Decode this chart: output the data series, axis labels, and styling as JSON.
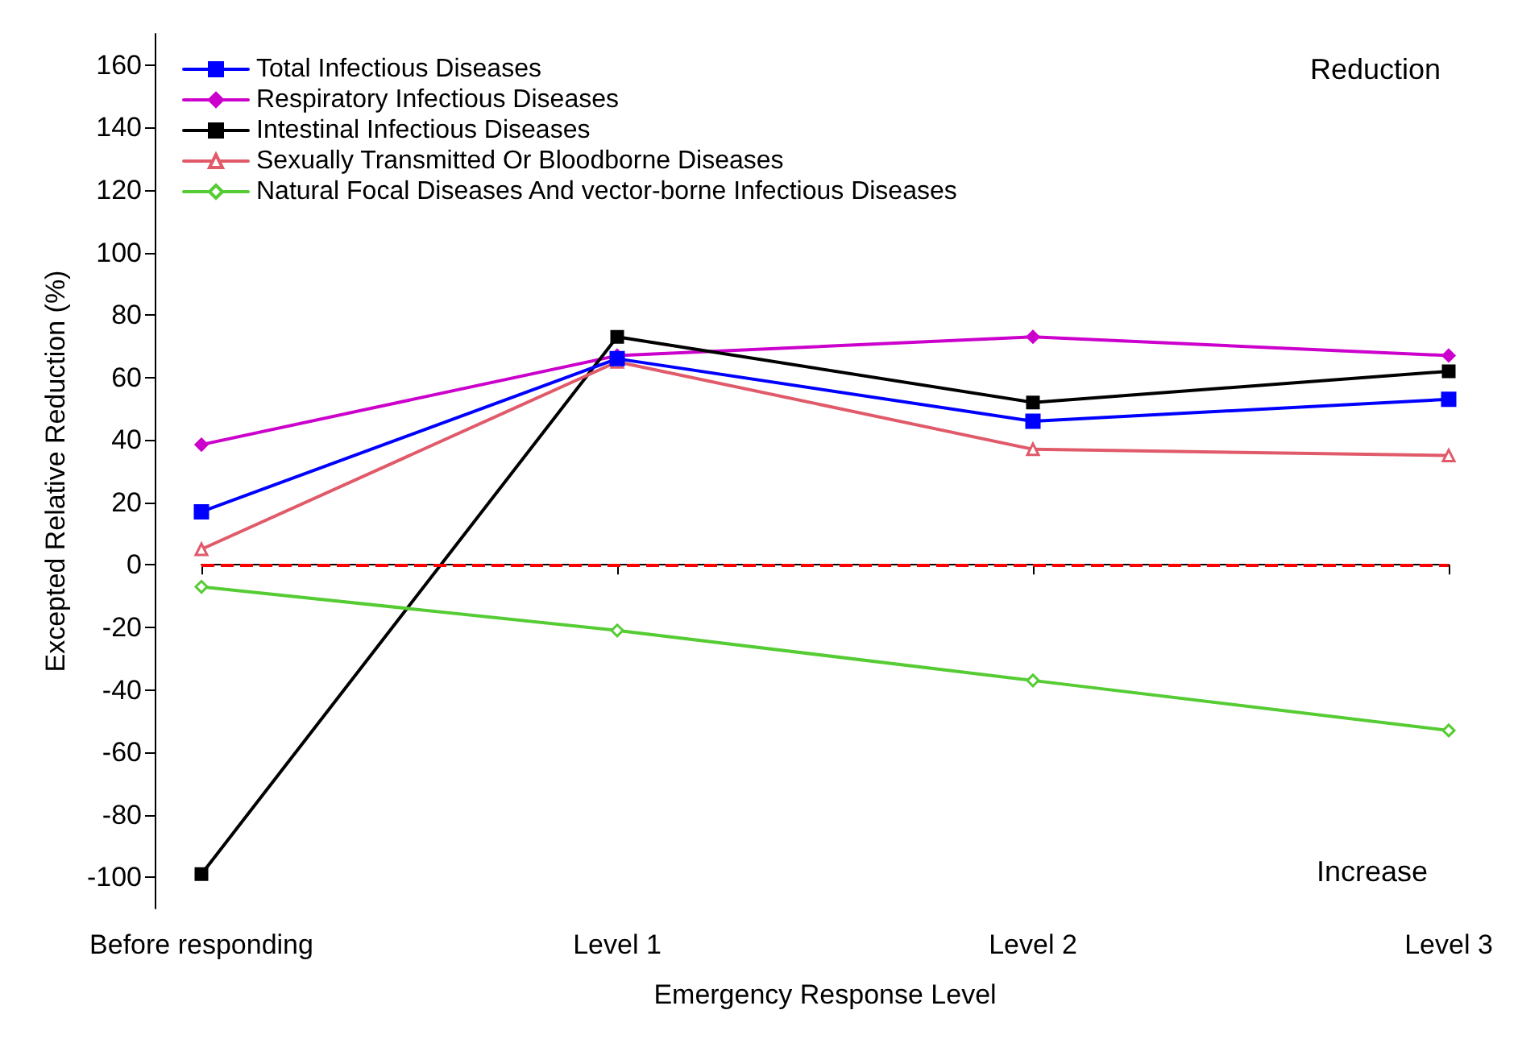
{
  "chart_data": {
    "type": "line",
    "xlabel": "Emergency Response Level",
    "ylabel": "Excepted Relative Reduction (%)",
    "categories": [
      "Before responding",
      "Level 1",
      "Level 2",
      "Level 3"
    ],
    "series": [
      {
        "name": "Total Infectious Diseases",
        "color": "#0000ff",
        "marker": "square",
        "values": [
          17,
          66,
          46,
          53
        ]
      },
      {
        "name": "Respiratory Infectious Diseases",
        "color": "#cc00cc",
        "marker": "diamond",
        "values": [
          38.5,
          67,
          73,
          67
        ]
      },
      {
        "name": "Intestinal Infectious Diseases",
        "color": "#000000",
        "marker": "square",
        "values": [
          -99,
          73,
          52,
          62
        ]
      },
      {
        "name": "Sexually Transmitted Or Bloodborne Diseases",
        "color": "#e05a6a",
        "marker": "triangle",
        "values": [
          5,
          65,
          37,
          35
        ]
      },
      {
        "name": "Natural Focal Diseases And vector-borne Infectious Diseases",
        "color": "#55cc33",
        "marker": "diamond",
        "values": [
          -7,
          -21,
          -37,
          -53
        ]
      }
    ],
    "ylim": [
      -110,
      170
    ],
    "yticks": [
      -100,
      -80,
      -60,
      -40,
      -20,
      0,
      20,
      40,
      60,
      80,
      100,
      120,
      140,
      160
    ],
    "ref_lines": [
      {
        "axis": "y",
        "value": 0,
        "color": "#ff0000",
        "line_style": "dashed"
      }
    ],
    "annotations": [
      "Reduction",
      "Increase"
    ],
    "legend": "top left",
    "grid": false,
    "line_style": "solid"
  }
}
